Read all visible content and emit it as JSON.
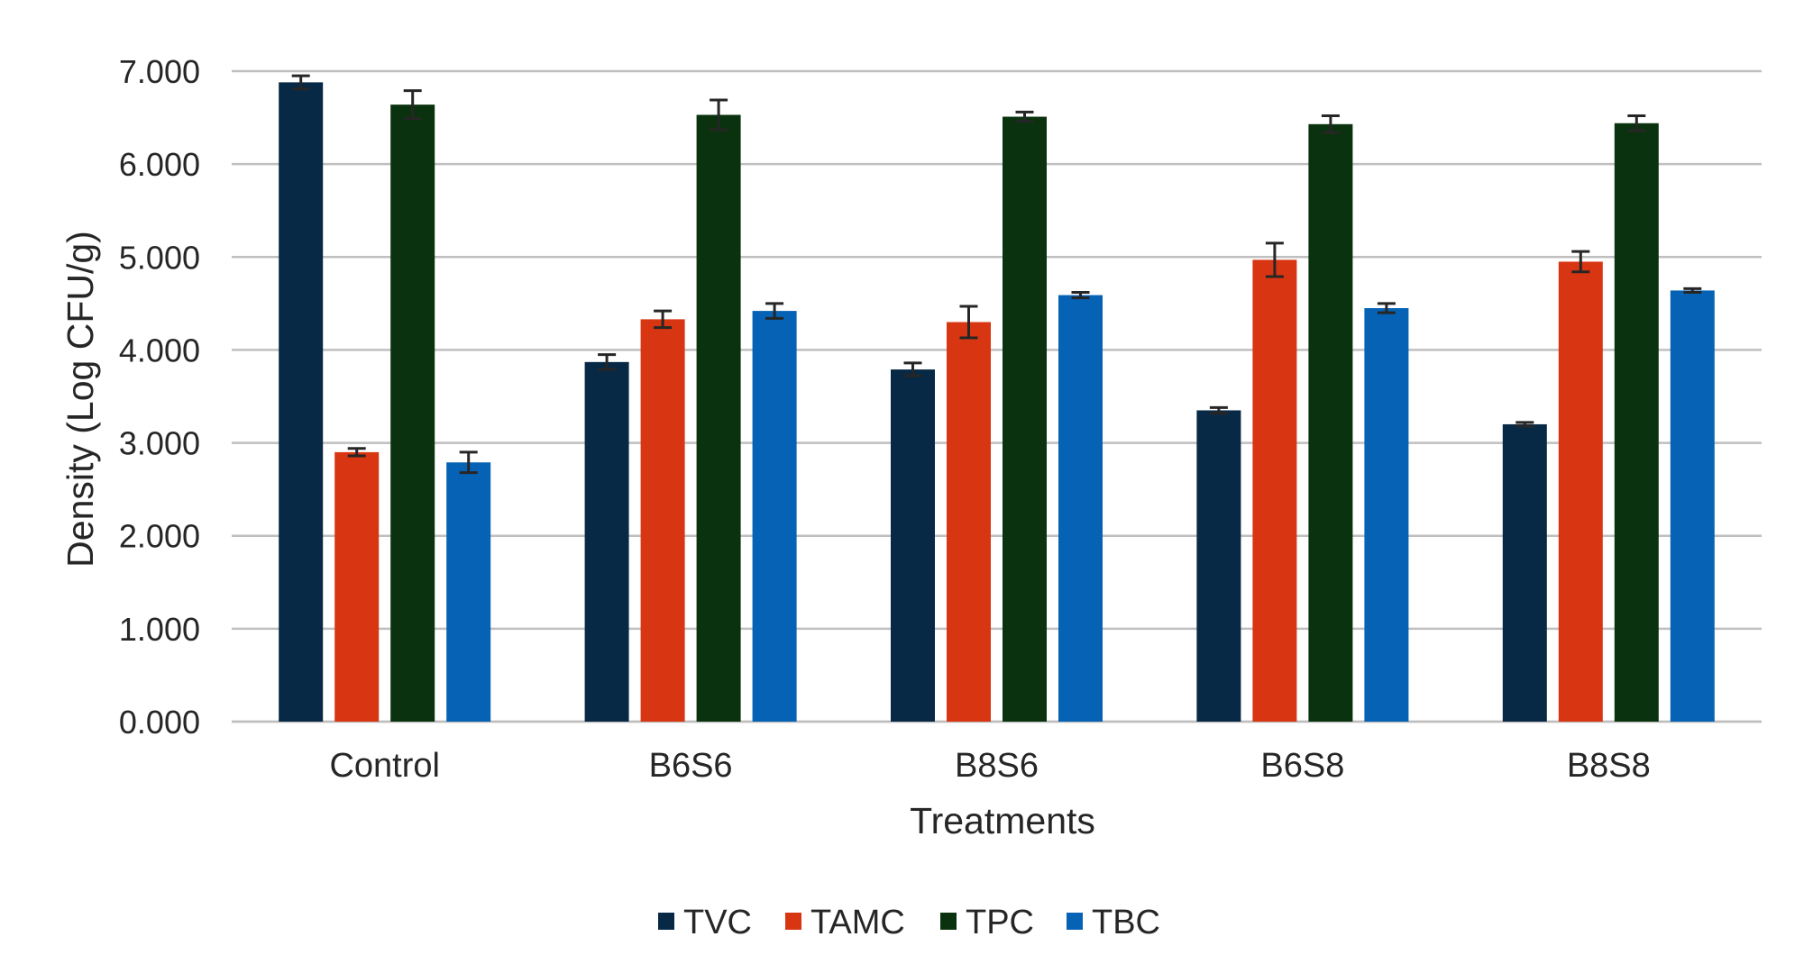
{
  "chart_data": {
    "type": "bar",
    "title": "",
    "xlabel": "Treatments",
    "ylabel": "Density (Log CFU/g)",
    "ylim": [
      0,
      7
    ],
    "yticks": [
      "0.000",
      "1.000",
      "2.000",
      "3.000",
      "4.000",
      "5.000",
      "6.000",
      "7.000"
    ],
    "grid": true,
    "legend_position": "bottom",
    "categories": [
      "Control",
      "B6S6",
      "B8S6",
      "B6S8",
      "B8S8"
    ],
    "series": [
      {
        "name": "TVC",
        "color": "#082946",
        "values": [
          6.88,
          3.87,
          3.79,
          3.35,
          3.2
        ],
        "errors": [
          0.07,
          0.08,
          0.07,
          0.03,
          0.02
        ]
      },
      {
        "name": "TAMC",
        "color": "#D83612",
        "values": [
          2.9,
          4.33,
          4.3,
          4.97,
          4.95
        ],
        "errors": [
          0.04,
          0.09,
          0.17,
          0.18,
          0.11
        ]
      },
      {
        "name": "TPC",
        "color": "#0A320E",
        "values": [
          6.64,
          6.53,
          6.51,
          6.43,
          6.44
        ],
        "errors": [
          0.15,
          0.16,
          0.05,
          0.09,
          0.08
        ]
      },
      {
        "name": "TBC",
        "color": "#0662B4",
        "values": [
          2.79,
          4.42,
          4.59,
          4.45,
          4.64
        ],
        "errors": [
          0.11,
          0.08,
          0.03,
          0.05,
          0.02
        ]
      }
    ]
  }
}
